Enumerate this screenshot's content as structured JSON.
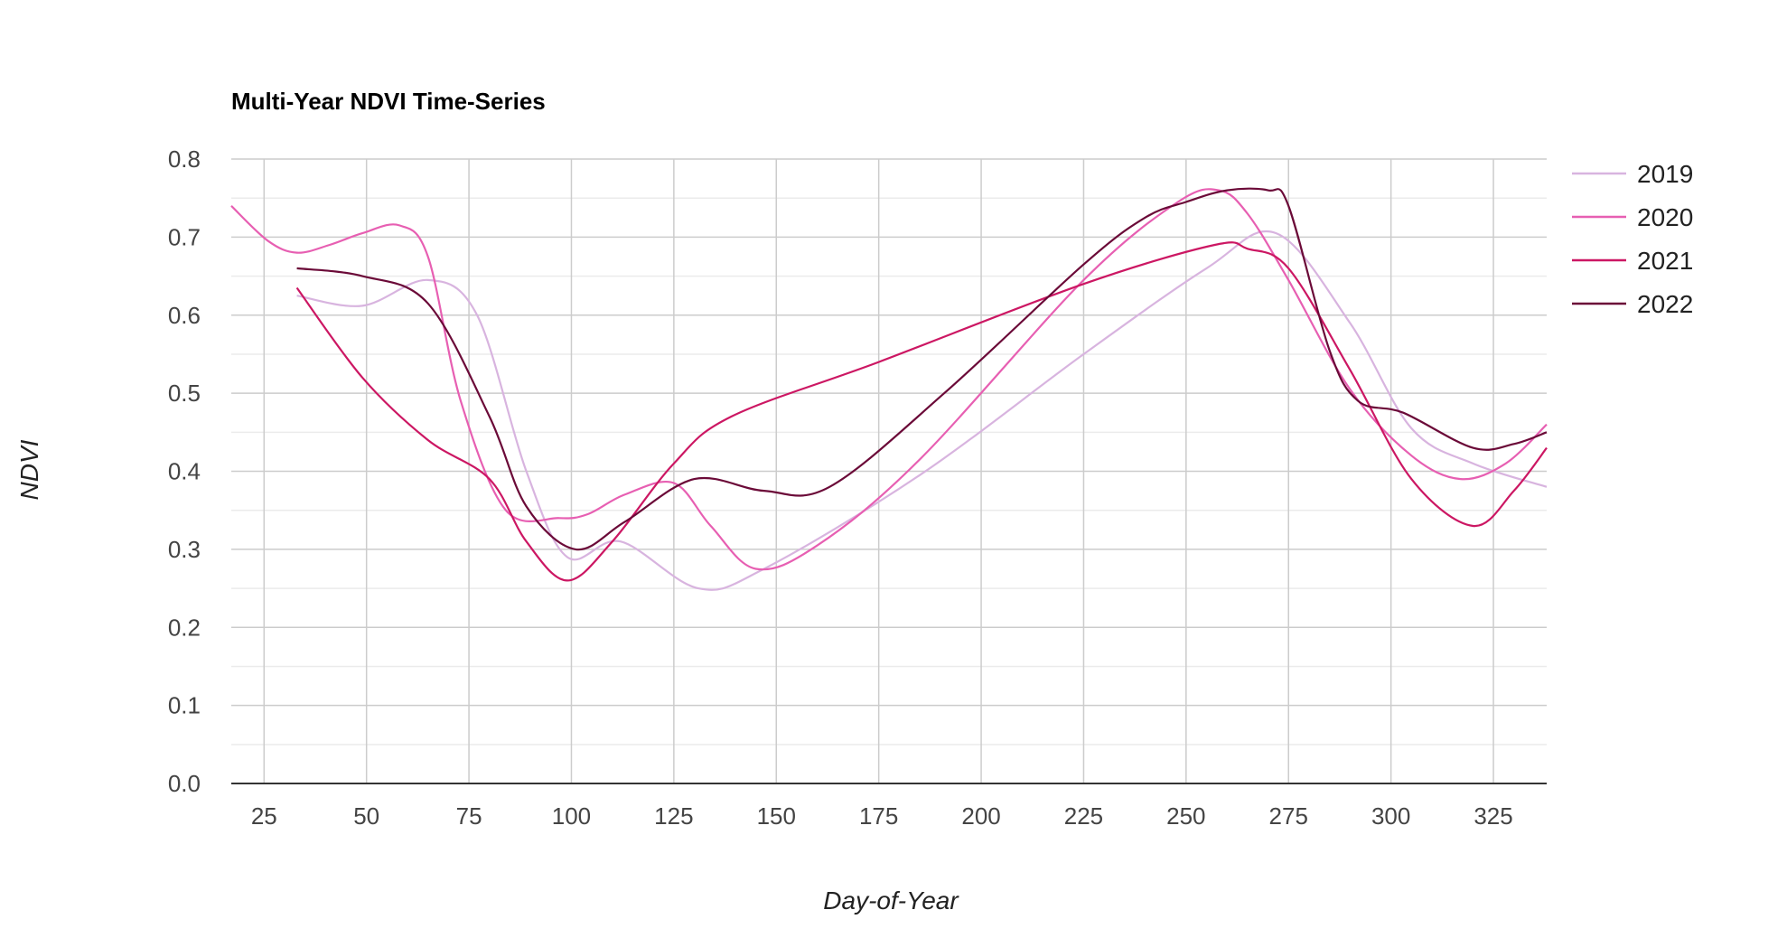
{
  "chart_data": {
    "type": "line",
    "title": "Multi-Year NDVI Time-Series",
    "xlabel": "Day-of-Year",
    "ylabel": "NDVI",
    "xlim": [
      17,
      338
    ],
    "ylim": [
      0,
      0.8
    ],
    "x_ticks": [
      25,
      50,
      75,
      100,
      125,
      150,
      175,
      200,
      225,
      250,
      275,
      300,
      325
    ],
    "y_ticks": [
      0,
      0.1,
      0.2,
      0.3,
      0.4,
      0.5,
      0.6,
      0.7,
      0.8
    ],
    "y_tick_labels": [
      "0.0",
      "0.1",
      "0.2",
      "0.3",
      "0.4",
      "0.5",
      "0.6",
      "0.7",
      "0.8"
    ],
    "grid": true,
    "legend": "right",
    "series": [
      {
        "name": "2019",
        "color": "#d8b4df",
        "x": [
          33,
          49,
          65,
          77,
          89,
          99,
          112,
          131,
          147,
          185,
          225,
          255,
          272,
          290,
          305,
          320,
          338
        ],
        "y": [
          0.625,
          0.612,
          0.645,
          0.6,
          0.4,
          0.29,
          0.31,
          0.25,
          0.275,
          0.395,
          0.55,
          0.66,
          0.705,
          0.59,
          0.455,
          0.41,
          0.38
        ]
      },
      {
        "name": "2020",
        "color": "#e75fb2",
        "x": [
          17,
          26,
          33,
          41,
          49,
          58,
          65,
          73,
          84,
          97,
          104,
          113,
          125,
          134,
          145,
          160,
          185,
          225,
          248,
          258,
          265,
          275,
          290,
          305,
          317,
          328,
          338
        ],
        "y": [
          0.74,
          0.695,
          0.68,
          0.69,
          0.705,
          0.715,
          0.675,
          0.49,
          0.35,
          0.34,
          0.345,
          0.37,
          0.385,
          0.33,
          0.275,
          0.305,
          0.415,
          0.645,
          0.745,
          0.76,
          0.73,
          0.645,
          0.505,
          0.42,
          0.39,
          0.41,
          0.46
        ]
      },
      {
        "name": "2021",
        "color": "#cc1763",
        "x": [
          33,
          49,
          65,
          80,
          89,
          99,
          110,
          125,
          139,
          175,
          225,
          257,
          265,
          275,
          290,
          305,
          320,
          330,
          338
        ],
        "y": [
          0.635,
          0.52,
          0.44,
          0.39,
          0.31,
          0.26,
          0.31,
          0.41,
          0.47,
          0.54,
          0.64,
          0.69,
          0.685,
          0.66,
          0.53,
          0.39,
          0.33,
          0.375,
          0.43
        ]
      },
      {
        "name": "2022",
        "color": "#6b0a38",
        "x": [
          33,
          49,
          65,
          80,
          89,
          101,
          113,
          130,
          147,
          163,
          191,
          225,
          240,
          250,
          260,
          270,
          275,
          285,
          292,
          303,
          320,
          330,
          338
        ],
        "y": [
          0.66,
          0.65,
          0.615,
          0.47,
          0.355,
          0.3,
          0.335,
          0.39,
          0.375,
          0.38,
          0.5,
          0.665,
          0.725,
          0.745,
          0.76,
          0.76,
          0.74,
          0.555,
          0.49,
          0.475,
          0.43,
          0.435,
          0.45
        ]
      }
    ]
  }
}
